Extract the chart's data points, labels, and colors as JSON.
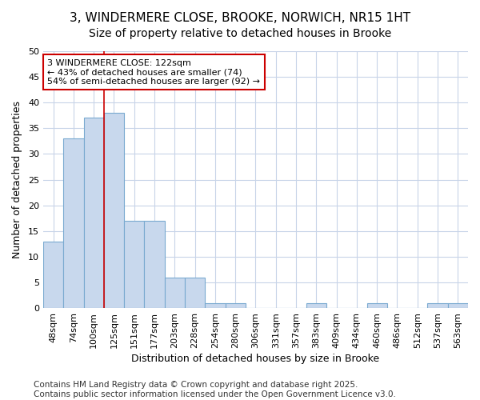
{
  "title_line1": "3, WINDERMERE CLOSE, BROOKE, NORWICH, NR15 1HT",
  "title_line2": "Size of property relative to detached houses in Brooke",
  "xlabel": "Distribution of detached houses by size in Brooke",
  "ylabel": "Number of detached properties",
  "bar_labels": [
    "48sqm",
    "74sqm",
    "100sqm",
    "125sqm",
    "151sqm",
    "177sqm",
    "203sqm",
    "228sqm",
    "254sqm",
    "280sqm",
    "306sqm",
    "331sqm",
    "357sqm",
    "383sqm",
    "409sqm",
    "434sqm",
    "460sqm",
    "486sqm",
    "512sqm",
    "537sqm",
    "563sqm"
  ],
  "bar_values": [
    13,
    33,
    37,
    38,
    17,
    17,
    6,
    6,
    1,
    1,
    0,
    0,
    0,
    1,
    0,
    0,
    1,
    0,
    0,
    1,
    1
  ],
  "bar_color": "#c8d8ed",
  "bar_edge_color": "#7aaad0",
  "ylim": [
    0,
    50
  ],
  "yticks": [
    0,
    5,
    10,
    15,
    20,
    25,
    30,
    35,
    40,
    45,
    50
  ],
  "vline_x_index": 3,
  "vline_color": "#cc0000",
  "annotation_text": "3 WINDERMERE CLOSE: 122sqm\n← 43% of detached houses are smaller (74)\n54% of semi-detached houses are larger (92) →",
  "annotation_box_color": "#ffffff",
  "annotation_box_edge": "#cc0000",
  "footer_text": "Contains HM Land Registry data © Crown copyright and database right 2025.\nContains public sector information licensed under the Open Government Licence v3.0.",
  "bg_color": "#ffffff",
  "plot_bg_color": "#ffffff",
  "grid_color": "#c8d4e8",
  "title_fontsize": 11,
  "subtitle_fontsize": 10,
  "axis_label_fontsize": 9,
  "tick_fontsize": 8,
  "footer_fontsize": 7.5
}
